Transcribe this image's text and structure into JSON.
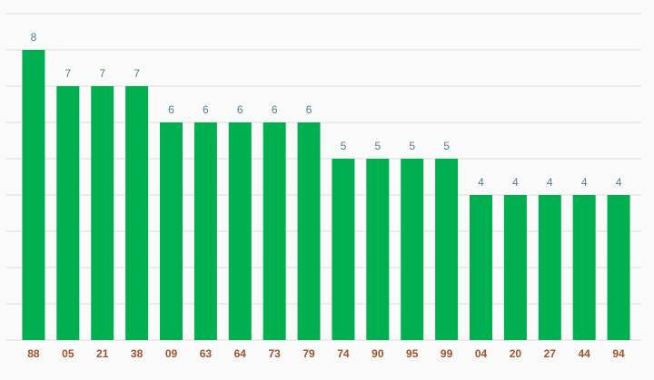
{
  "chart_data": {
    "type": "bar",
    "categories": [
      "88",
      "05",
      "21",
      "38",
      "09",
      "63",
      "64",
      "73",
      "79",
      "74",
      "90",
      "95",
      "99",
      "04",
      "20",
      "27",
      "44",
      "94"
    ],
    "values": [
      8,
      7,
      7,
      7,
      6,
      6,
      6,
      6,
      6,
      5,
      5,
      5,
      5,
      4,
      4,
      4,
      4,
      4
    ],
    "color": "#00b050",
    "ylim": [
      0,
      9
    ],
    "yticks": [
      0,
      1,
      2,
      3,
      4,
      5,
      6,
      7,
      8,
      9
    ],
    "grid": true
  }
}
